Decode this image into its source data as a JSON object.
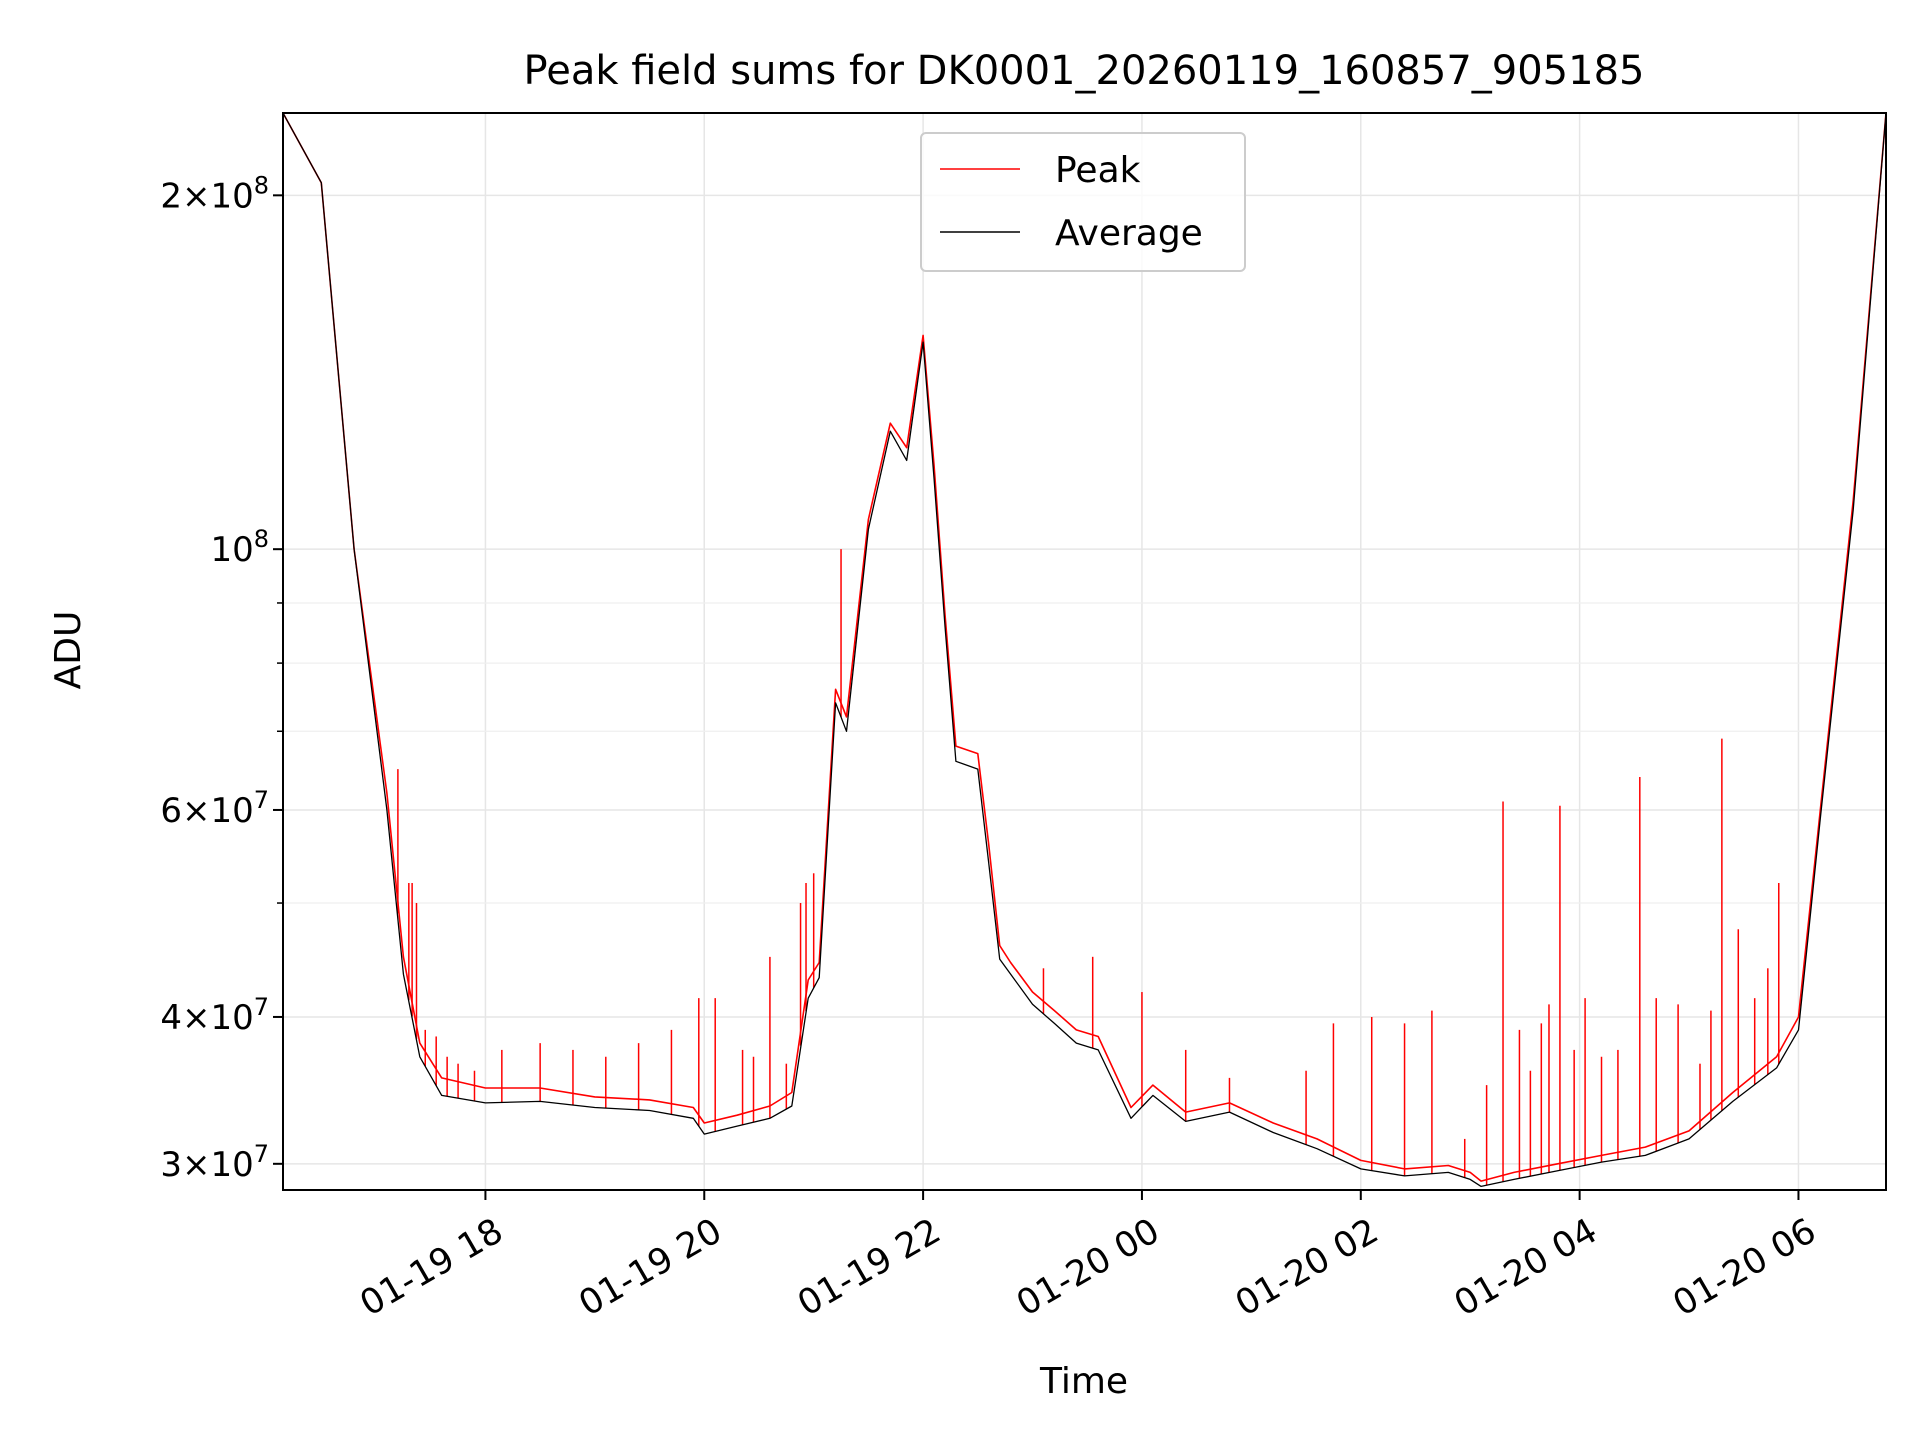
{
  "chart_data": {
    "type": "line",
    "title": "Peak field sums for DK0001_20260119_160857_905185",
    "xlabel": "Time",
    "ylabel": "ADU",
    "y_scale": "log",
    "xlim": [
      16.15,
      30.8
    ],
    "ylim": [
      28500000,
      235000000
    ],
    "x_unit": "hours since 2026-01-19 00:00",
    "grid": true,
    "legend_position": "top-center",
    "x_ticks": [
      {
        "value": 18,
        "label": "01-19 18"
      },
      {
        "value": 20,
        "label": "01-19 20"
      },
      {
        "value": 22,
        "label": "01-19 22"
      },
      {
        "value": 24,
        "label": "01-20 00"
      },
      {
        "value": 26,
        "label": "01-20 02"
      },
      {
        "value": 28,
        "label": "01-20 04"
      },
      {
        "value": 30,
        "label": "01-20 06"
      }
    ],
    "y_ticks": [
      {
        "value": 30000000,
        "mantissa": "3",
        "exponent": "7"
      },
      {
        "value": 40000000,
        "mantissa": "4",
        "exponent": "7"
      },
      {
        "value": 60000000,
        "mantissa": "6",
        "exponent": "7"
      },
      {
        "value": 100000000,
        "mantissa": "",
        "exponent": "8"
      },
      {
        "value": 200000000,
        "mantissa": "2",
        "exponent": "8"
      }
    ],
    "y_minor_ticks": [
      50000000,
      70000000,
      80000000,
      90000000
    ],
    "series": [
      {
        "name": "Peak",
        "color": "#ff0000",
        "x": [
          16.15,
          16.5,
          16.8,
          17.1,
          17.25,
          17.4,
          17.6,
          18.0,
          18.5,
          19.0,
          19.5,
          19.9,
          20.0,
          20.3,
          20.6,
          20.8,
          20.95,
          21.05,
          21.2,
          21.3,
          21.5,
          21.7,
          21.85,
          22.0,
          22.1,
          22.2,
          22.3,
          22.5,
          22.6,
          22.7,
          22.8,
          23.0,
          23.2,
          23.4,
          23.6,
          23.9,
          24.1,
          24.4,
          24.8,
          25.2,
          25.6,
          26.0,
          26.4,
          26.8,
          27.0,
          27.1,
          27.4,
          27.8,
          28.2,
          28.6,
          29.0,
          29.4,
          29.8,
          30.0,
          30.2,
          30.5,
          30.8
        ],
        "y": [
          235000000,
          205000000,
          100000000,
          62000000,
          45000000,
          38000000,
          35500000,
          34800000,
          34800000,
          34200000,
          34000000,
          33500000,
          32500000,
          33000000,
          33600000,
          34500000,
          43000000,
          44500000,
          76000000,
          72000000,
          106000000,
          128000000,
          122000000,
          152000000,
          118000000,
          88000000,
          68000000,
          67000000,
          56000000,
          46000000,
          44500000,
          42000000,
          40500000,
          39000000,
          38500000,
          33500000,
          35000000,
          33200000,
          33800000,
          32500000,
          31500000,
          30200000,
          29700000,
          29900000,
          29500000,
          29000000,
          29500000,
          30000000,
          30500000,
          31000000,
          32000000,
          34500000,
          37000000,
          40000000,
          60000000,
          110000000,
          235000000
        ]
      },
      {
        "name": "Average",
        "color": "#000000",
        "x": [
          16.15,
          16.5,
          16.8,
          17.1,
          17.25,
          17.4,
          17.6,
          18.0,
          18.5,
          19.0,
          19.5,
          19.9,
          20.0,
          20.3,
          20.6,
          20.8,
          20.95,
          21.05,
          21.2,
          21.3,
          21.5,
          21.7,
          21.85,
          22.0,
          22.1,
          22.2,
          22.3,
          22.5,
          22.6,
          22.7,
          22.8,
          23.0,
          23.2,
          23.4,
          23.6,
          23.9,
          24.1,
          24.4,
          24.8,
          25.2,
          25.6,
          26.0,
          26.4,
          26.8,
          27.0,
          27.1,
          27.4,
          27.8,
          28.2,
          28.6,
          29.0,
          29.4,
          29.8,
          30.0,
          30.2,
          30.5,
          30.8
        ],
        "y": [
          235000000,
          205000000,
          100000000,
          60000000,
          43500000,
          37000000,
          34300000,
          33800000,
          33900000,
          33500000,
          33300000,
          32800000,
          31800000,
          32300000,
          32800000,
          33600000,
          41500000,
          43200000,
          74000000,
          70000000,
          104000000,
          126000000,
          119000000,
          150000000,
          115000000,
          86000000,
          66000000,
          65000000,
          54000000,
          44800000,
          43500000,
          41000000,
          39500000,
          38000000,
          37500000,
          32800000,
          34300000,
          32600000,
          33200000,
          31900000,
          30900000,
          29700000,
          29300000,
          29500000,
          29100000,
          28700000,
          29100000,
          29600000,
          30100000,
          30500000,
          31500000,
          33900000,
          36200000,
          39000000,
          59000000,
          108000000,
          235000000
        ]
      }
    ],
    "spikes": {
      "x": [
        17.2,
        17.3,
        17.33,
        17.37,
        17.45,
        17.55,
        17.65,
        17.75,
        17.9,
        18.15,
        18.5,
        18.8,
        19.1,
        19.4,
        19.7,
        19.95,
        20.1,
        20.35,
        20.45,
        20.6,
        20.75,
        20.88,
        20.93,
        21.0,
        21.25,
        23.1,
        23.55,
        24.0,
        24.4,
        24.8,
        25.5,
        25.75,
        26.1,
        26.4,
        26.65,
        26.95,
        27.15,
        27.3,
        27.45,
        27.55,
        27.65,
        27.72,
        27.82,
        27.95,
        28.05,
        28.2,
        28.35,
        28.55,
        28.7,
        28.9,
        29.1,
        29.2,
        29.3,
        29.45,
        29.6,
        29.72,
        29.82
      ],
      "y": [
        65000000,
        52000000,
        52000000,
        50000000,
        39000000,
        38500000,
        37000000,
        36500000,
        36000000,
        37500000,
        38000000,
        37500000,
        37000000,
        38000000,
        39000000,
        41500000,
        41500000,
        37500000,
        37000000,
        45000000,
        36500000,
        50000000,
        52000000,
        53000000,
        100000000,
        44000000,
        45000000,
        42000000,
        37500000,
        35500000,
        36000000,
        39500000,
        40000000,
        39500000,
        40500000,
        31500000,
        35000000,
        61000000,
        39000000,
        36000000,
        39500000,
        41000000,
        60500000,
        37500000,
        41500000,
        37000000,
        37500000,
        64000000,
        41500000,
        41000000,
        36500000,
        40500000,
        69000000,
        47500000,
        41500000,
        44000000,
        52000000
      ]
    },
    "legend_entries": [
      "Peak",
      "Average"
    ]
  }
}
